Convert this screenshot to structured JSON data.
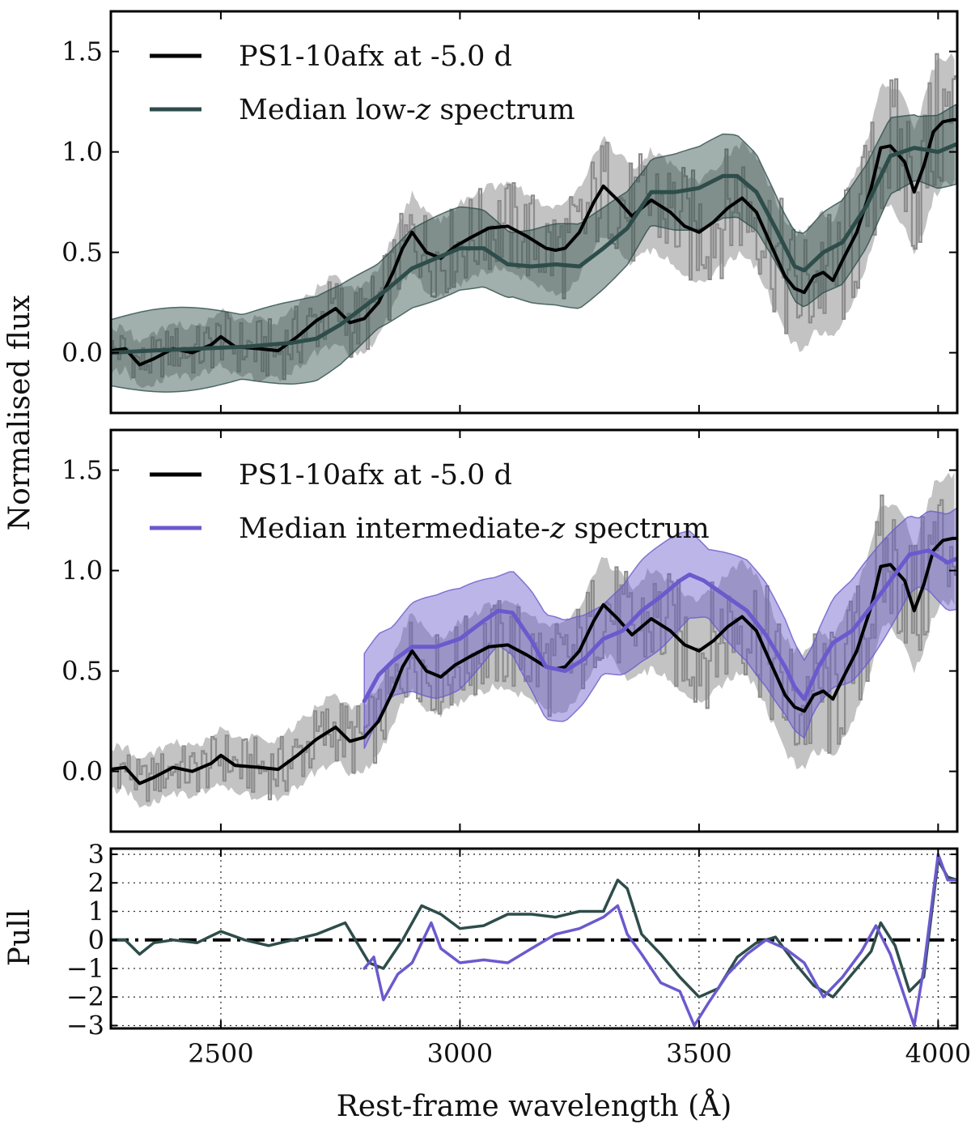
{
  "chart_data": [
    {
      "type": "line",
      "panel": "top",
      "ylabel": "Normalised flux",
      "xlim": [
        2270,
        4040
      ],
      "ylim": [
        -0.3,
        1.7
      ],
      "yticks": [
        0.0,
        0.5,
        1.0,
        1.5
      ],
      "ytick_labels": [
        "0.0",
        "0.5",
        "1.0",
        "1.5"
      ],
      "legend": {
        "position": "top-left",
        "entries": [
          {
            "prefix": "PS1-10afx at -5.0 d",
            "italic": "",
            "suffix": ""
          },
          {
            "prefix": "Median low-",
            "italic": "z",
            "suffix": " spectrum"
          }
        ]
      },
      "series": [
        {
          "name": "PS1-10afx at -5.0 d",
          "color": "#000000",
          "x": [
            2270,
            2300,
            2330,
            2360,
            2400,
            2440,
            2480,
            2500,
            2530,
            2580,
            2620,
            2660,
            2700,
            2740,
            2770,
            2800,
            2830,
            2860,
            2880,
            2900,
            2930,
            2960,
            2990,
            3020,
            3060,
            3100,
            3140,
            3180,
            3200,
            3220,
            3250,
            3280,
            3300,
            3330,
            3360,
            3400,
            3440,
            3470,
            3500,
            3530,
            3560,
            3590,
            3620,
            3650,
            3680,
            3700,
            3720,
            3740,
            3760,
            3780,
            3800,
            3830,
            3860,
            3880,
            3900,
            3930,
            3950,
            3970,
            3990,
            4010,
            4030,
            4040
          ],
          "y": [
            0.01,
            0.02,
            -0.06,
            -0.03,
            0.02,
            0.0,
            0.04,
            0.08,
            0.03,
            0.02,
            0.01,
            0.08,
            0.16,
            0.22,
            0.15,
            0.17,
            0.25,
            0.4,
            0.52,
            0.6,
            0.5,
            0.47,
            0.53,
            0.57,
            0.62,
            0.63,
            0.58,
            0.52,
            0.51,
            0.52,
            0.6,
            0.75,
            0.83,
            0.76,
            0.68,
            0.76,
            0.7,
            0.63,
            0.6,
            0.65,
            0.72,
            0.77,
            0.7,
            0.54,
            0.38,
            0.32,
            0.3,
            0.38,
            0.4,
            0.36,
            0.46,
            0.6,
            0.82,
            1.02,
            1.03,
            0.95,
            0.8,
            0.93,
            1.1,
            1.15,
            1.16,
            1.16
          ]
        },
        {
          "name": "Median low-z spectrum",
          "color": "#2e4d4a",
          "x": [
            2270,
            2350,
            2450,
            2550,
            2650,
            2700,
            2750,
            2800,
            2850,
            2900,
            2950,
            3000,
            3050,
            3100,
            3150,
            3200,
            3250,
            3300,
            3350,
            3400,
            3450,
            3500,
            3550,
            3580,
            3620,
            3660,
            3700,
            3720,
            3760,
            3800,
            3850,
            3900,
            3950,
            4000,
            4040
          ],
          "y": [
            0.0,
            0.01,
            0.02,
            0.03,
            0.05,
            0.07,
            0.14,
            0.23,
            0.32,
            0.42,
            0.47,
            0.52,
            0.52,
            0.44,
            0.43,
            0.44,
            0.43,
            0.52,
            0.62,
            0.8,
            0.8,
            0.82,
            0.88,
            0.88,
            0.8,
            0.62,
            0.43,
            0.41,
            0.5,
            0.55,
            0.73,
            0.98,
            1.02,
            1.0,
            1.04
          ]
        }
      ]
    },
    {
      "type": "line",
      "panel": "middle",
      "ylabel": "Normalised flux",
      "xlim": [
        2270,
        4040
      ],
      "ylim": [
        -0.3,
        1.7
      ],
      "yticks": [
        0.0,
        0.5,
        1.0,
        1.5
      ],
      "ytick_labels": [
        "0.0",
        "0.5",
        "1.0",
        "1.5"
      ],
      "legend": {
        "position": "top-left",
        "entries": [
          {
            "prefix": "PS1-10afx at -5.0 d",
            "italic": "",
            "suffix": ""
          },
          {
            "prefix": "Median intermediate-",
            "italic": "z",
            "suffix": " spectrum"
          }
        ]
      },
      "series": [
        {
          "name": "PS1-10afx at -5.0 d",
          "color": "#000000",
          "x": [
            2270,
            2300,
            2330,
            2360,
            2400,
            2440,
            2480,
            2500,
            2530,
            2580,
            2620,
            2660,
            2700,
            2740,
            2770,
            2800,
            2830,
            2860,
            2880,
            2900,
            2930,
            2960,
            2990,
            3020,
            3060,
            3100,
            3140,
            3180,
            3200,
            3220,
            3250,
            3280,
            3300,
            3330,
            3360,
            3400,
            3440,
            3470,
            3500,
            3530,
            3560,
            3590,
            3620,
            3650,
            3680,
            3700,
            3720,
            3740,
            3760,
            3780,
            3800,
            3830,
            3860,
            3880,
            3900,
            3930,
            3950,
            3970,
            3990,
            4010,
            4030,
            4040
          ],
          "y": [
            0.01,
            0.02,
            -0.06,
            -0.03,
            0.02,
            0.0,
            0.04,
            0.08,
            0.03,
            0.02,
            0.01,
            0.08,
            0.16,
            0.22,
            0.15,
            0.17,
            0.25,
            0.4,
            0.52,
            0.6,
            0.5,
            0.47,
            0.53,
            0.57,
            0.62,
            0.63,
            0.58,
            0.52,
            0.51,
            0.52,
            0.6,
            0.75,
            0.83,
            0.76,
            0.68,
            0.76,
            0.7,
            0.63,
            0.6,
            0.65,
            0.72,
            0.77,
            0.7,
            0.54,
            0.38,
            0.32,
            0.3,
            0.38,
            0.4,
            0.36,
            0.46,
            0.6,
            0.82,
            1.02,
            1.03,
            0.95,
            0.8,
            0.93,
            1.1,
            1.15,
            1.16,
            1.16
          ]
        },
        {
          "name": "Median intermediate-z spectrum",
          "color": "#6a5acd",
          "x": [
            2800,
            2830,
            2860,
            2900,
            2950,
            3000,
            3050,
            3080,
            3110,
            3150,
            3180,
            3220,
            3260,
            3300,
            3340,
            3380,
            3420,
            3460,
            3480,
            3510,
            3540,
            3570,
            3600,
            3640,
            3680,
            3700,
            3720,
            3750,
            3780,
            3820,
            3860,
            3900,
            3940,
            3980,
            4020,
            4040
          ],
          "y": [
            0.35,
            0.48,
            0.55,
            0.62,
            0.62,
            0.66,
            0.75,
            0.8,
            0.79,
            0.65,
            0.52,
            0.5,
            0.56,
            0.66,
            0.7,
            0.8,
            0.87,
            0.95,
            0.98,
            0.95,
            0.9,
            0.85,
            0.8,
            0.68,
            0.52,
            0.42,
            0.36,
            0.52,
            0.64,
            0.7,
            0.82,
            0.95,
            1.08,
            1.1,
            1.04,
            1.06
          ]
        }
      ]
    },
    {
      "type": "line",
      "panel": "bottom",
      "xlabel": "Rest-frame wavelength (Å)",
      "ylabel": "Pull",
      "xlim": [
        2270,
        4040
      ],
      "ylim": [
        -3.1,
        3.2
      ],
      "xticks": [
        2500,
        3000,
        3500,
        4000
      ],
      "xtick_labels": [
        "2500",
        "3000",
        "3500",
        "4000"
      ],
      "yticks": [
        3,
        2,
        1,
        0,
        -1,
        -2,
        -3
      ],
      "ytick_labels": [
        "3",
        "2",
        "1",
        "0",
        "−1",
        "−2",
        "−3"
      ],
      "grid": true,
      "series": [
        {
          "name": "Pull low-z",
          "color": "#2e4d4a",
          "x": [
            2270,
            2300,
            2330,
            2360,
            2400,
            2450,
            2500,
            2550,
            2600,
            2650,
            2700,
            2760,
            2810,
            2840,
            2880,
            2920,
            2960,
            3000,
            3050,
            3100,
            3150,
            3200,
            3250,
            3300,
            3330,
            3350,
            3380,
            3420,
            3460,
            3500,
            3540,
            3580,
            3620,
            3660,
            3700,
            3740,
            3780,
            3820,
            3860,
            3880,
            3910,
            3940,
            3970,
            4000,
            4020,
            4040
          ],
          "y": [
            0.0,
            0.0,
            -0.5,
            -0.1,
            0.0,
            -0.1,
            0.3,
            0.0,
            -0.2,
            0.0,
            0.2,
            0.6,
            -0.8,
            -1.0,
            0.0,
            1.2,
            0.9,
            0.4,
            0.5,
            0.9,
            0.9,
            0.8,
            1.0,
            1.0,
            2.1,
            1.8,
            0.2,
            -0.5,
            -1.3,
            -2.0,
            -1.7,
            -0.6,
            -0.1,
            0.1,
            -0.8,
            -1.6,
            -2.0,
            -1.2,
            -0.4,
            0.6,
            -0.2,
            -1.8,
            -1.3,
            2.8,
            2.2,
            2.1
          ]
        },
        {
          "name": "Pull intermediate-z",
          "color": "#6a5acd",
          "x": [
            2800,
            2820,
            2840,
            2870,
            2900,
            2940,
            2960,
            3000,
            3050,
            3100,
            3150,
            3200,
            3250,
            3300,
            3330,
            3350,
            3380,
            3420,
            3460,
            3490,
            3520,
            3560,
            3600,
            3640,
            3680,
            3720,
            3760,
            3800,
            3840,
            3870,
            3900,
            3930,
            3950,
            3970,
            4000,
            4020,
            4040
          ],
          "y": [
            -1.0,
            -0.6,
            -2.1,
            -1.2,
            -0.8,
            0.6,
            -0.3,
            -0.8,
            -0.7,
            -0.8,
            -0.3,
            0.2,
            0.4,
            0.8,
            1.2,
            0.2,
            -0.5,
            -1.5,
            -1.8,
            -3.0,
            -2.2,
            -1.2,
            -0.5,
            0.0,
            -0.3,
            -0.8,
            -2.0,
            -1.3,
            -0.4,
            0.5,
            -0.5,
            -2.0,
            -3.0,
            -1.0,
            3.0,
            2.1,
            2.1
          ]
        }
      ]
    }
  ]
}
